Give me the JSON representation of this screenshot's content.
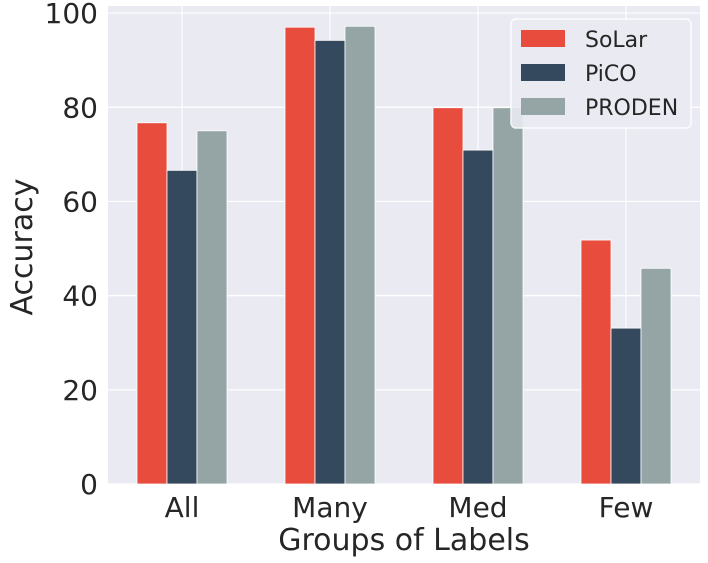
{
  "chart_data": {
    "type": "bar",
    "title": "",
    "xlabel": "Groups of Labels",
    "ylabel": "Accuracy",
    "categories": [
      "All",
      "Many",
      "Med",
      "Few"
    ],
    "series": [
      {
        "name": "SoLar",
        "color": "#e74c3c",
        "values": [
          76.7,
          97.0,
          79.9,
          51.8
        ]
      },
      {
        "name": "PiCO",
        "color": "#34495e",
        "values": [
          66.6,
          94.2,
          70.9,
          33.1
        ]
      },
      {
        "name": "PRODEN",
        "color": "#95a5a6",
        "values": [
          75.0,
          97.2,
          79.9,
          45.8
        ]
      }
    ],
    "ylim": [
      0,
      101.5
    ],
    "yticks": [
      0,
      20,
      40,
      60,
      80,
      100
    ],
    "grid": true,
    "legend_position": "top-right",
    "background_color": "#eaeaf2"
  }
}
